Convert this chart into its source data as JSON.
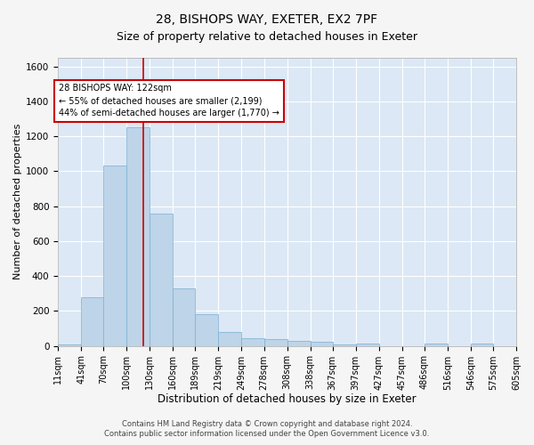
{
  "title1": "28, BISHOPS WAY, EXETER, EX2 7PF",
  "title2": "Size of property relative to detached houses in Exeter",
  "xlabel": "Distribution of detached houses by size in Exeter",
  "ylabel": "Number of detached properties",
  "footnote1": "Contains HM Land Registry data © Crown copyright and database right 2024.",
  "footnote2": "Contains public sector information licensed under the Open Government Licence v3.0.",
  "bin_edges": [
    11,
    41,
    70,
    100,
    130,
    160,
    189,
    219,
    249,
    278,
    308,
    338,
    367,
    397,
    427,
    457,
    486,
    516,
    546,
    575,
    605
  ],
  "bar_heights": [
    10,
    280,
    1035,
    1250,
    760,
    330,
    180,
    80,
    45,
    38,
    28,
    22,
    10,
    15,
    0,
    0,
    15,
    0,
    15,
    0
  ],
  "bar_color": "#bed4e8",
  "bar_edge_color": "#7aafd4",
  "property_size": 122,
  "vline_color": "#cc0000",
  "annotation_text": "28 BISHOPS WAY: 122sqm\n← 55% of detached houses are smaller (2,199)\n44% of semi-detached houses are larger (1,770) →",
  "annotation_box_color": "#cc0000",
  "ylim": [
    0,
    1650
  ],
  "yticks": [
    0,
    200,
    400,
    600,
    800,
    1000,
    1200,
    1400,
    1600
  ],
  "background_color": "#dce8f5",
  "plot_bg_color": "#dce8f5",
  "fig_bg_color": "#f5f5f5",
  "grid_color": "#ffffff",
  "title1_fontsize": 10,
  "title2_fontsize": 9,
  "xlabel_fontsize": 8.5,
  "ylabel_fontsize": 8,
  "tick_fontsize": 7,
  "annotation_fontsize": 7,
  "footnote_fontsize": 6
}
